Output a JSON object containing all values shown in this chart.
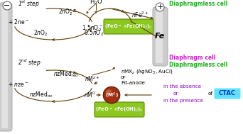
{
  "bg_color": "#ffffff",
  "arrow_color": "#5a3a00",
  "step1_label": "1$^{st}$ step",
  "step2_label": "2$^{nd}$ step",
  "h2o_label": "H$_2$O",
  "nfe_label": "$n$Fe$^{2+}$",
  "reaction1_top": "2$n$O$_2^{\\bullet-}$",
  "reaction1_left": "+ 2$n$e$^-$",
  "reaction1_bot1": "2$n$O$_2$",
  "reaction1_bot2": "1.5$n$O$_2^-$",
  "reaction1_bot3": "0.5$n$O$_2$",
  "green_box1": "(FeO • $x$Fe(OH)$_2$)$_n$",
  "nmx_label": "$n$MX$_z$ (AgNO$_3$, AuCl)",
  "or_label": "or",
  "pd_label": "Pd-anode",
  "nMz_label": "$n$M$^{z+}$",
  "nMed_red": "$n$zMed$_{red}$",
  "nze_label": "+ $n$ze$^-$",
  "nMed_ox": "$n$zMed$_{ox}$",
  "nM0_label": "$n$M$^0$",
  "green_box2": "(FeO • $x$Fe(OH)$_2$)$_n$",
  "M0_label": "(M$^0$)",
  "diaphragmless_top": "Diaphragmless cell",
  "diaphragm_mid": "Diaphragm cell",
  "diaphragmless_bot": "Diaphragmless cell",
  "absence_text": "in the absence",
  "or_text": "or",
  "presence_text": "in the presence",
  "of_text": "of",
  "ctac_text": "CTAC",
  "fe_text": "Fe",
  "minus_sign": "−",
  "plus_sign": "+"
}
